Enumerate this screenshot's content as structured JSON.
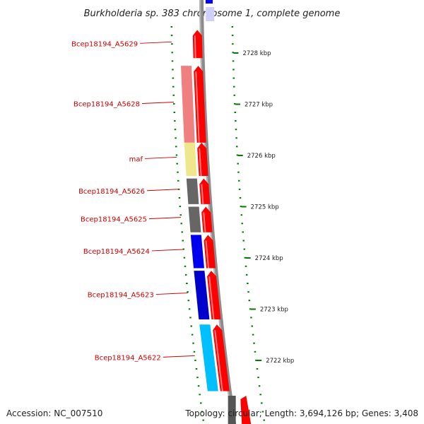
{
  "title": "Burkholderia sp. 383 chromosome 1, complete genome",
  "footer": {
    "accession": "Accession: NC_007510",
    "topology": "Topology: circular; Length: 3,694,126 bp; Genes: 3,408"
  },
  "colors": {
    "backbone": "#8c8c8c",
    "forward_cds": "#ff0000",
    "tick": "#007a00",
    "label": "#cc0000"
  },
  "scale_ticks": [
    {
      "kbp": 2728,
      "label": "2728 kbp"
    },
    {
      "kbp": 2727,
      "label": "2727 kbp"
    },
    {
      "kbp": 2726,
      "label": "2726 kbp"
    },
    {
      "kbp": 2725,
      "label": "2725 kbp"
    },
    {
      "kbp": 2724,
      "label": "2724 kbp"
    },
    {
      "kbp": 2723,
      "label": "2723 kbp"
    },
    {
      "kbp": 2722,
      "label": "2722 kbp"
    }
  ],
  "genes": [
    {
      "label": "Bcep18194_A5629",
      "start_kbp": 2727.9,
      "end_kbp": 2728.45,
      "cog_color": "",
      "strand": "+"
    },
    {
      "label": "Bcep18194_A5628",
      "start_kbp": 2726.25,
      "end_kbp": 2727.75,
      "cog_color": "#f08080",
      "strand": "+"
    },
    {
      "label": "maf",
      "start_kbp": 2725.6,
      "end_kbp": 2726.25,
      "cog_color": "#f0e68c",
      "strand": "+"
    },
    {
      "label": "Bcep18194_A5626",
      "start_kbp": 2725.05,
      "end_kbp": 2725.55,
      "cog_color": "#666666",
      "strand": "+"
    },
    {
      "label": "Bcep18194_A5625",
      "start_kbp": 2724.5,
      "end_kbp": 2725.0,
      "cog_color": "#666666",
      "strand": "+"
    },
    {
      "label": "Bcep18194_A5624",
      "start_kbp": 2723.8,
      "end_kbp": 2724.45,
      "cog_color": "#0000ee",
      "strand": "+"
    },
    {
      "label": "Bcep18194_A5623",
      "start_kbp": 2722.8,
      "end_kbp": 2723.75,
      "cog_color": "#0000cc",
      "strand": "+"
    },
    {
      "label": "Bcep18194_A5622",
      "start_kbp": 2721.4,
      "end_kbp": 2722.7,
      "cog_color": "#00bfff",
      "strand": "+"
    }
  ]
}
